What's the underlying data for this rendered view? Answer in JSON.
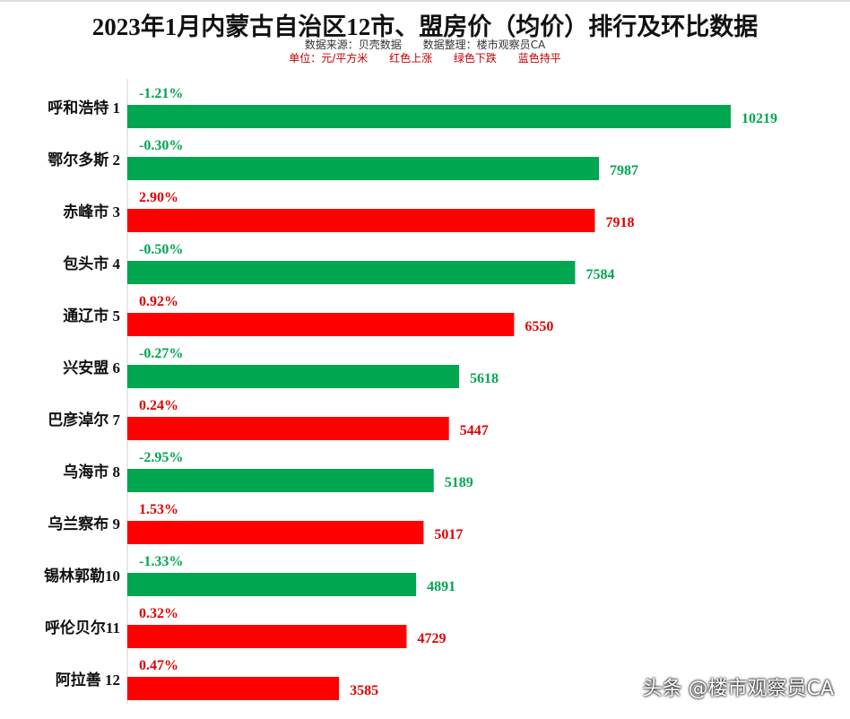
{
  "chart_data": {
    "type": "bar",
    "orientation": "horizontal",
    "title": "2023年1月内蒙古自治区12市、盟房价（均价）排行及环比数据",
    "subtitle_source": [
      "数据来源：贝壳数据",
      "数据整理：楼市观察员CA"
    ],
    "subtitle_legend": [
      "单位：元/平方米",
      "红色上涨",
      "绿色下跌",
      "蓝色持平"
    ],
    "categories": [
      "呼和浩特 1",
      "鄂尔多斯 2",
      "赤峰市  3",
      "包头市  4",
      "通辽市  5",
      "兴安盟  6",
      "巴彦淖尔 7",
      "乌海市  8",
      "乌兰察布 9",
      "锡林郭勒10",
      "呼伦贝尔11",
      "阿拉善  12"
    ],
    "values": [
      10219,
      7987,
      7918,
      7584,
      6550,
      5618,
      5447,
      5189,
      5017,
      4891,
      4729,
      3585
    ],
    "changes": [
      "-1.21%",
      "-0.30%",
      "2.90%",
      "-0.50%",
      "0.92%",
      "-0.27%",
      "0.24%",
      "-2.95%",
      "1.53%",
      "-1.33%",
      "0.32%",
      "0.47%"
    ],
    "xlim": [
      0,
      10219
    ],
    "colors": {
      "up": "#ff0000",
      "down": "#00a650",
      "flat": "#0070c0",
      "up_text": "#e00000",
      "down_text": "#00a650"
    }
  },
  "watermark": "头条 @楼市观察员CA"
}
